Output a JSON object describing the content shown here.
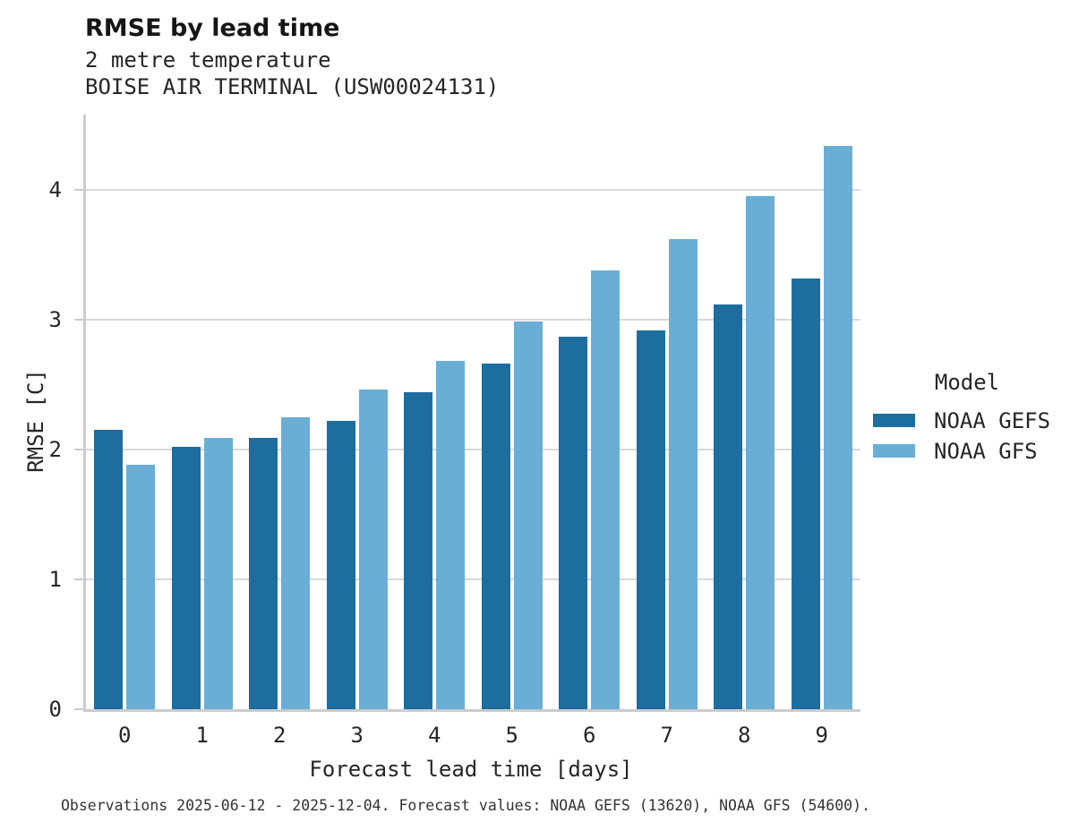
{
  "header": {
    "title": "RMSE by lead time",
    "subtitle_variable": "2 metre temperature",
    "subtitle_station": "BOISE AIR TERMINAL (USW00024131)"
  },
  "legend": {
    "title": "Model",
    "entries": [
      {
        "label": "NOAA GEFS",
        "color": "#1d6d9e"
      },
      {
        "label": "NOAA GFS",
        "color": "#6aaed6"
      }
    ]
  },
  "caption": "Observations 2025-06-12 - 2025-12-04. Forecast values: NOAA GEFS (13620), NOAA GFS (54600).",
  "colors": {
    "gefs_dark_blue": "#1d6d9e",
    "gfs_light_blue": "#6aaed6",
    "gridline_gray": "#d9d9d9",
    "spine_gray": "#cccccc"
  },
  "chart_data": {
    "type": "bar",
    "title": "RMSE by lead time",
    "subtitle": "2 metre temperature — BOISE AIR TERMINAL (USW00024131)",
    "xlabel": "Forecast lead time [days]",
    "ylabel": "RMSE [C]",
    "categories": [
      "0",
      "1",
      "2",
      "3",
      "4",
      "5",
      "6",
      "7",
      "8",
      "9"
    ],
    "series": [
      {
        "name": "NOAA GEFS",
        "color": "#1d6d9e",
        "values": [
          2.15,
          2.02,
          2.09,
          2.22,
          2.44,
          2.66,
          2.87,
          2.92,
          3.12,
          3.32
        ]
      },
      {
        "name": "NOAA GFS",
        "color": "#6aaed6",
        "values": [
          1.88,
          2.09,
          2.25,
          2.46,
          2.68,
          2.99,
          3.38,
          3.62,
          3.95,
          4.34
        ]
      }
    ],
    "ylim": [
      0,
      4.58
    ],
    "yticks": [
      0,
      1,
      2,
      3,
      4
    ],
    "grid": "horizontal",
    "legend_title": "Model",
    "legend_position": "right"
  }
}
